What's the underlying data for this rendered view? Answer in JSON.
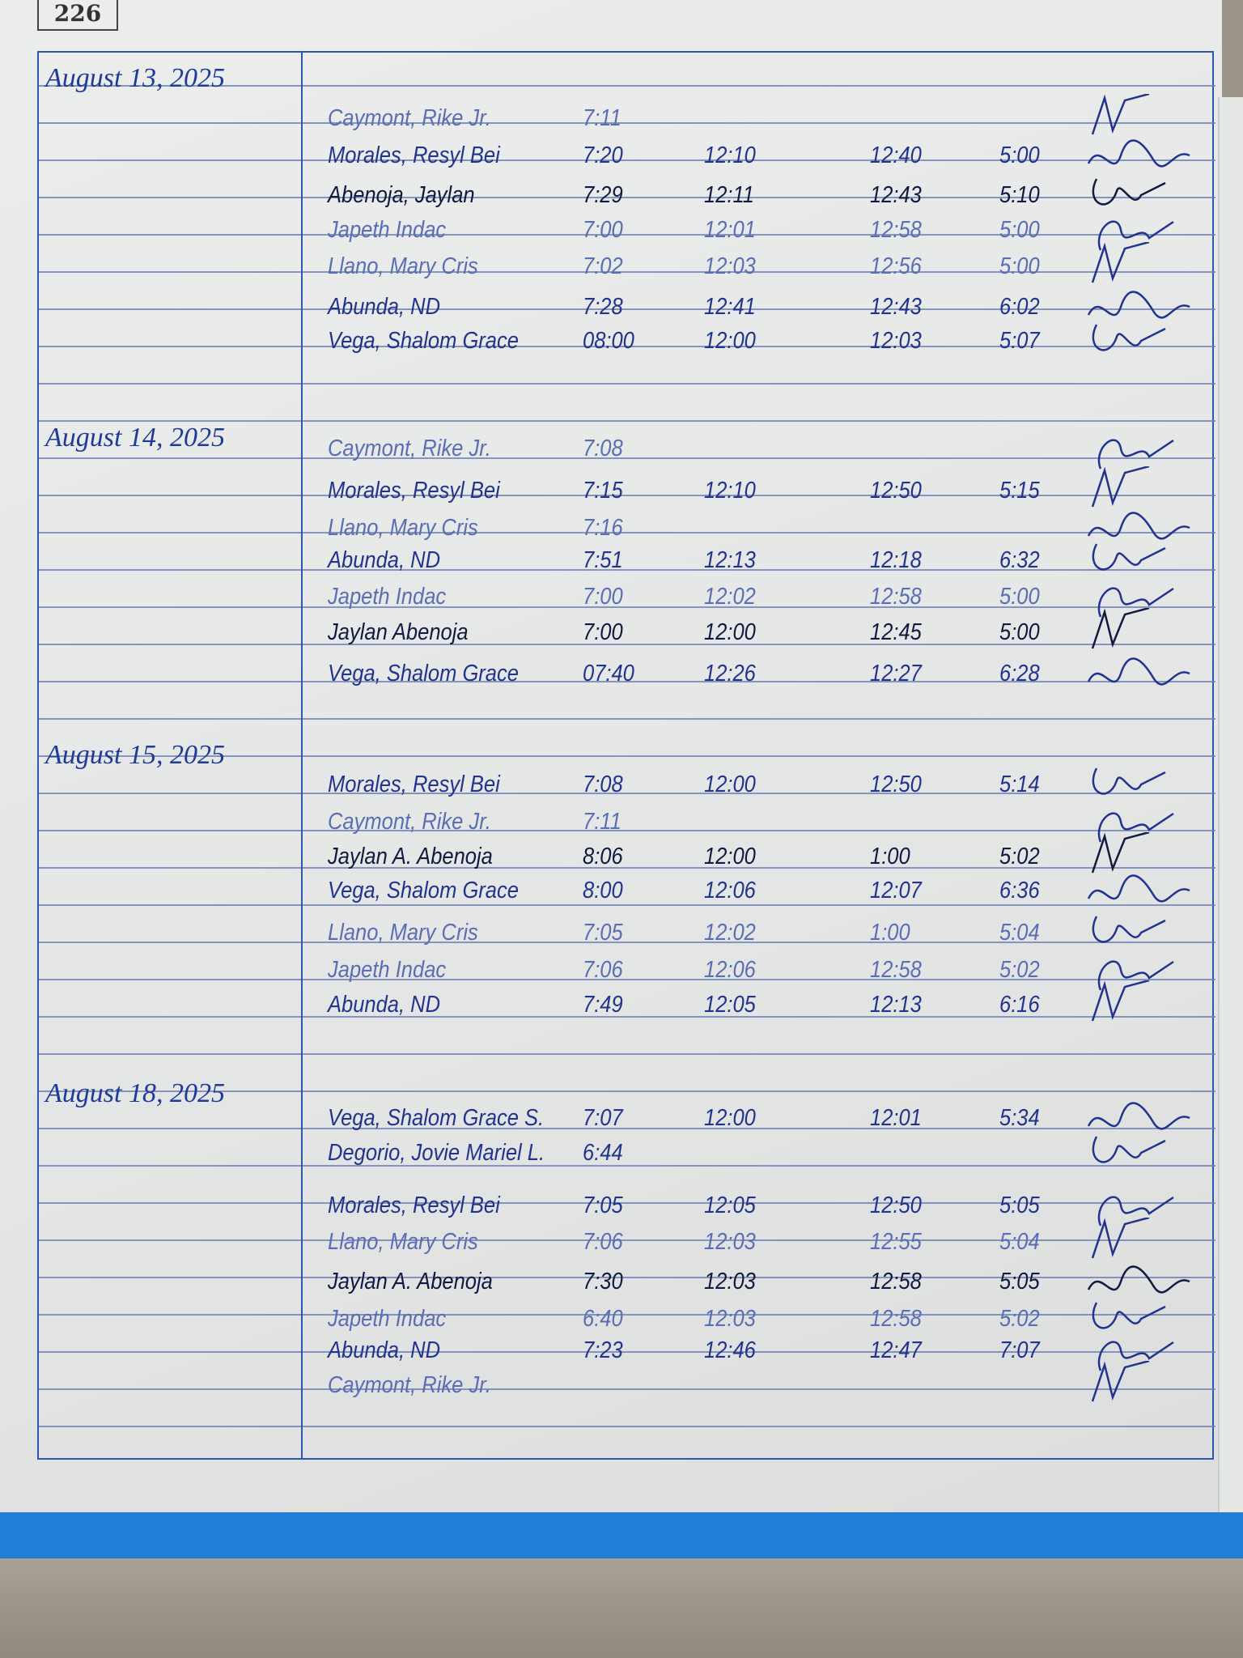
{
  "page_number": "226",
  "colors": {
    "ink_blue": "#22338f",
    "rule_blue": "#2f55b0",
    "folder_blue": "#1f7fd6"
  },
  "sections": [
    {
      "date": "August 13, 2025",
      "entries": [
        {
          "name": "Caymont, Rike Jr.",
          "times": [
            "7:11"
          ]
        },
        {
          "name": "Morales, Resyl Bei",
          "times": [
            "7:20",
            "12:10",
            "12:40",
            "5:00"
          ]
        },
        {
          "name": "Abenoja, Jaylan",
          "times": [
            "7:29",
            "12:11",
            "12:43",
            "5:10"
          ]
        },
        {
          "name": "Japeth Indac",
          "times": [
            "7:00",
            "12:01",
            "12:58",
            "5:00"
          ]
        },
        {
          "name": "Llano, Mary Cris",
          "times": [
            "7:02",
            "12:03",
            "12:56",
            "5:00"
          ]
        },
        {
          "name": "Abunda, ND",
          "times": [
            "7:28",
            "12:41",
            "12:43",
            "6:02"
          ]
        },
        {
          "name": "Vega, Shalom Grace",
          "times": [
            "08:00",
            "12:00",
            "12:03",
            "5:07"
          ]
        }
      ]
    },
    {
      "date": "August 14, 2025",
      "entries": [
        {
          "name": "Caymont, Rike Jr.",
          "times": [
            "7:08"
          ]
        },
        {
          "name": "Morales, Resyl Bei",
          "times": [
            "7:15",
            "12:10",
            "12:50",
            "5:15"
          ]
        },
        {
          "name": "Llano, Mary Cris",
          "times": [
            "7:16"
          ]
        },
        {
          "name": "Abunda, ND",
          "times": [
            "7:51",
            "12:13",
            "12:18",
            "6:32"
          ]
        },
        {
          "name": "Japeth Indac",
          "times": [
            "7:00",
            "12:02",
            "12:58",
            "5:00"
          ]
        },
        {
          "name": "Jaylan Abenoja",
          "times": [
            "7:00",
            "12:00",
            "12:45",
            "5:00"
          ]
        },
        {
          "name": "Vega, Shalom Grace",
          "times": [
            "07:40",
            "12:26",
            "12:27",
            "6:28"
          ]
        }
      ]
    },
    {
      "date": "August 15, 2025",
      "entries": [
        {
          "name": "Morales, Resyl Bei",
          "times": [
            "7:08",
            "12:00",
            "12:50",
            "5:14"
          ]
        },
        {
          "name": "Caymont, Rike Jr.",
          "times": [
            "7:11"
          ]
        },
        {
          "name": "Jaylan A. Abenoja",
          "times": [
            "8:06",
            "12:00",
            "1:00",
            "5:02"
          ]
        },
        {
          "name": "Vega, Shalom Grace",
          "times": [
            "8:00",
            "12:06",
            "12:07",
            "6:36"
          ]
        },
        {
          "name": "Llano, Mary Cris",
          "times": [
            "7:05",
            "12:02",
            "1:00",
            "5:04"
          ]
        },
        {
          "name": "Japeth Indac",
          "times": [
            "7:06",
            "12:06",
            "12:58",
            "5:02"
          ]
        },
        {
          "name": "Abunda, ND",
          "times": [
            "7:49",
            "12:05",
            "12:13",
            "6:16"
          ]
        }
      ]
    },
    {
      "date": "August 18, 2025",
      "entries": [
        {
          "name": "Vega, Shalom Grace S.",
          "times": [
            "7:07",
            "12:00",
            "12:01",
            "5:34"
          ]
        },
        {
          "name": "Degorio, Jovie Mariel L.",
          "times": [
            "6:44"
          ]
        },
        {
          "name": "Morales, Resyl Bei",
          "times": [
            "7:05",
            "12:05",
            "12:50",
            "5:05"
          ]
        },
        {
          "name": "Llano, Mary Cris",
          "times": [
            "7:06",
            "12:03",
            "12:55",
            "5:04"
          ]
        },
        {
          "name": "Jaylan A. Abenoja",
          "times": [
            "7:30",
            "12:03",
            "12:58",
            "5:05"
          ]
        },
        {
          "name": "Japeth Indac",
          "times": [
            "6:40",
            "12:03",
            "12:58",
            "5:02"
          ]
        },
        {
          "name": "Abunda, ND",
          "times": [
            "7:23",
            "12:46",
            "12:47",
            "7:07"
          ]
        },
        {
          "name": "Caymont, Rike Jr.",
          "times": []
        }
      ]
    }
  ]
}
